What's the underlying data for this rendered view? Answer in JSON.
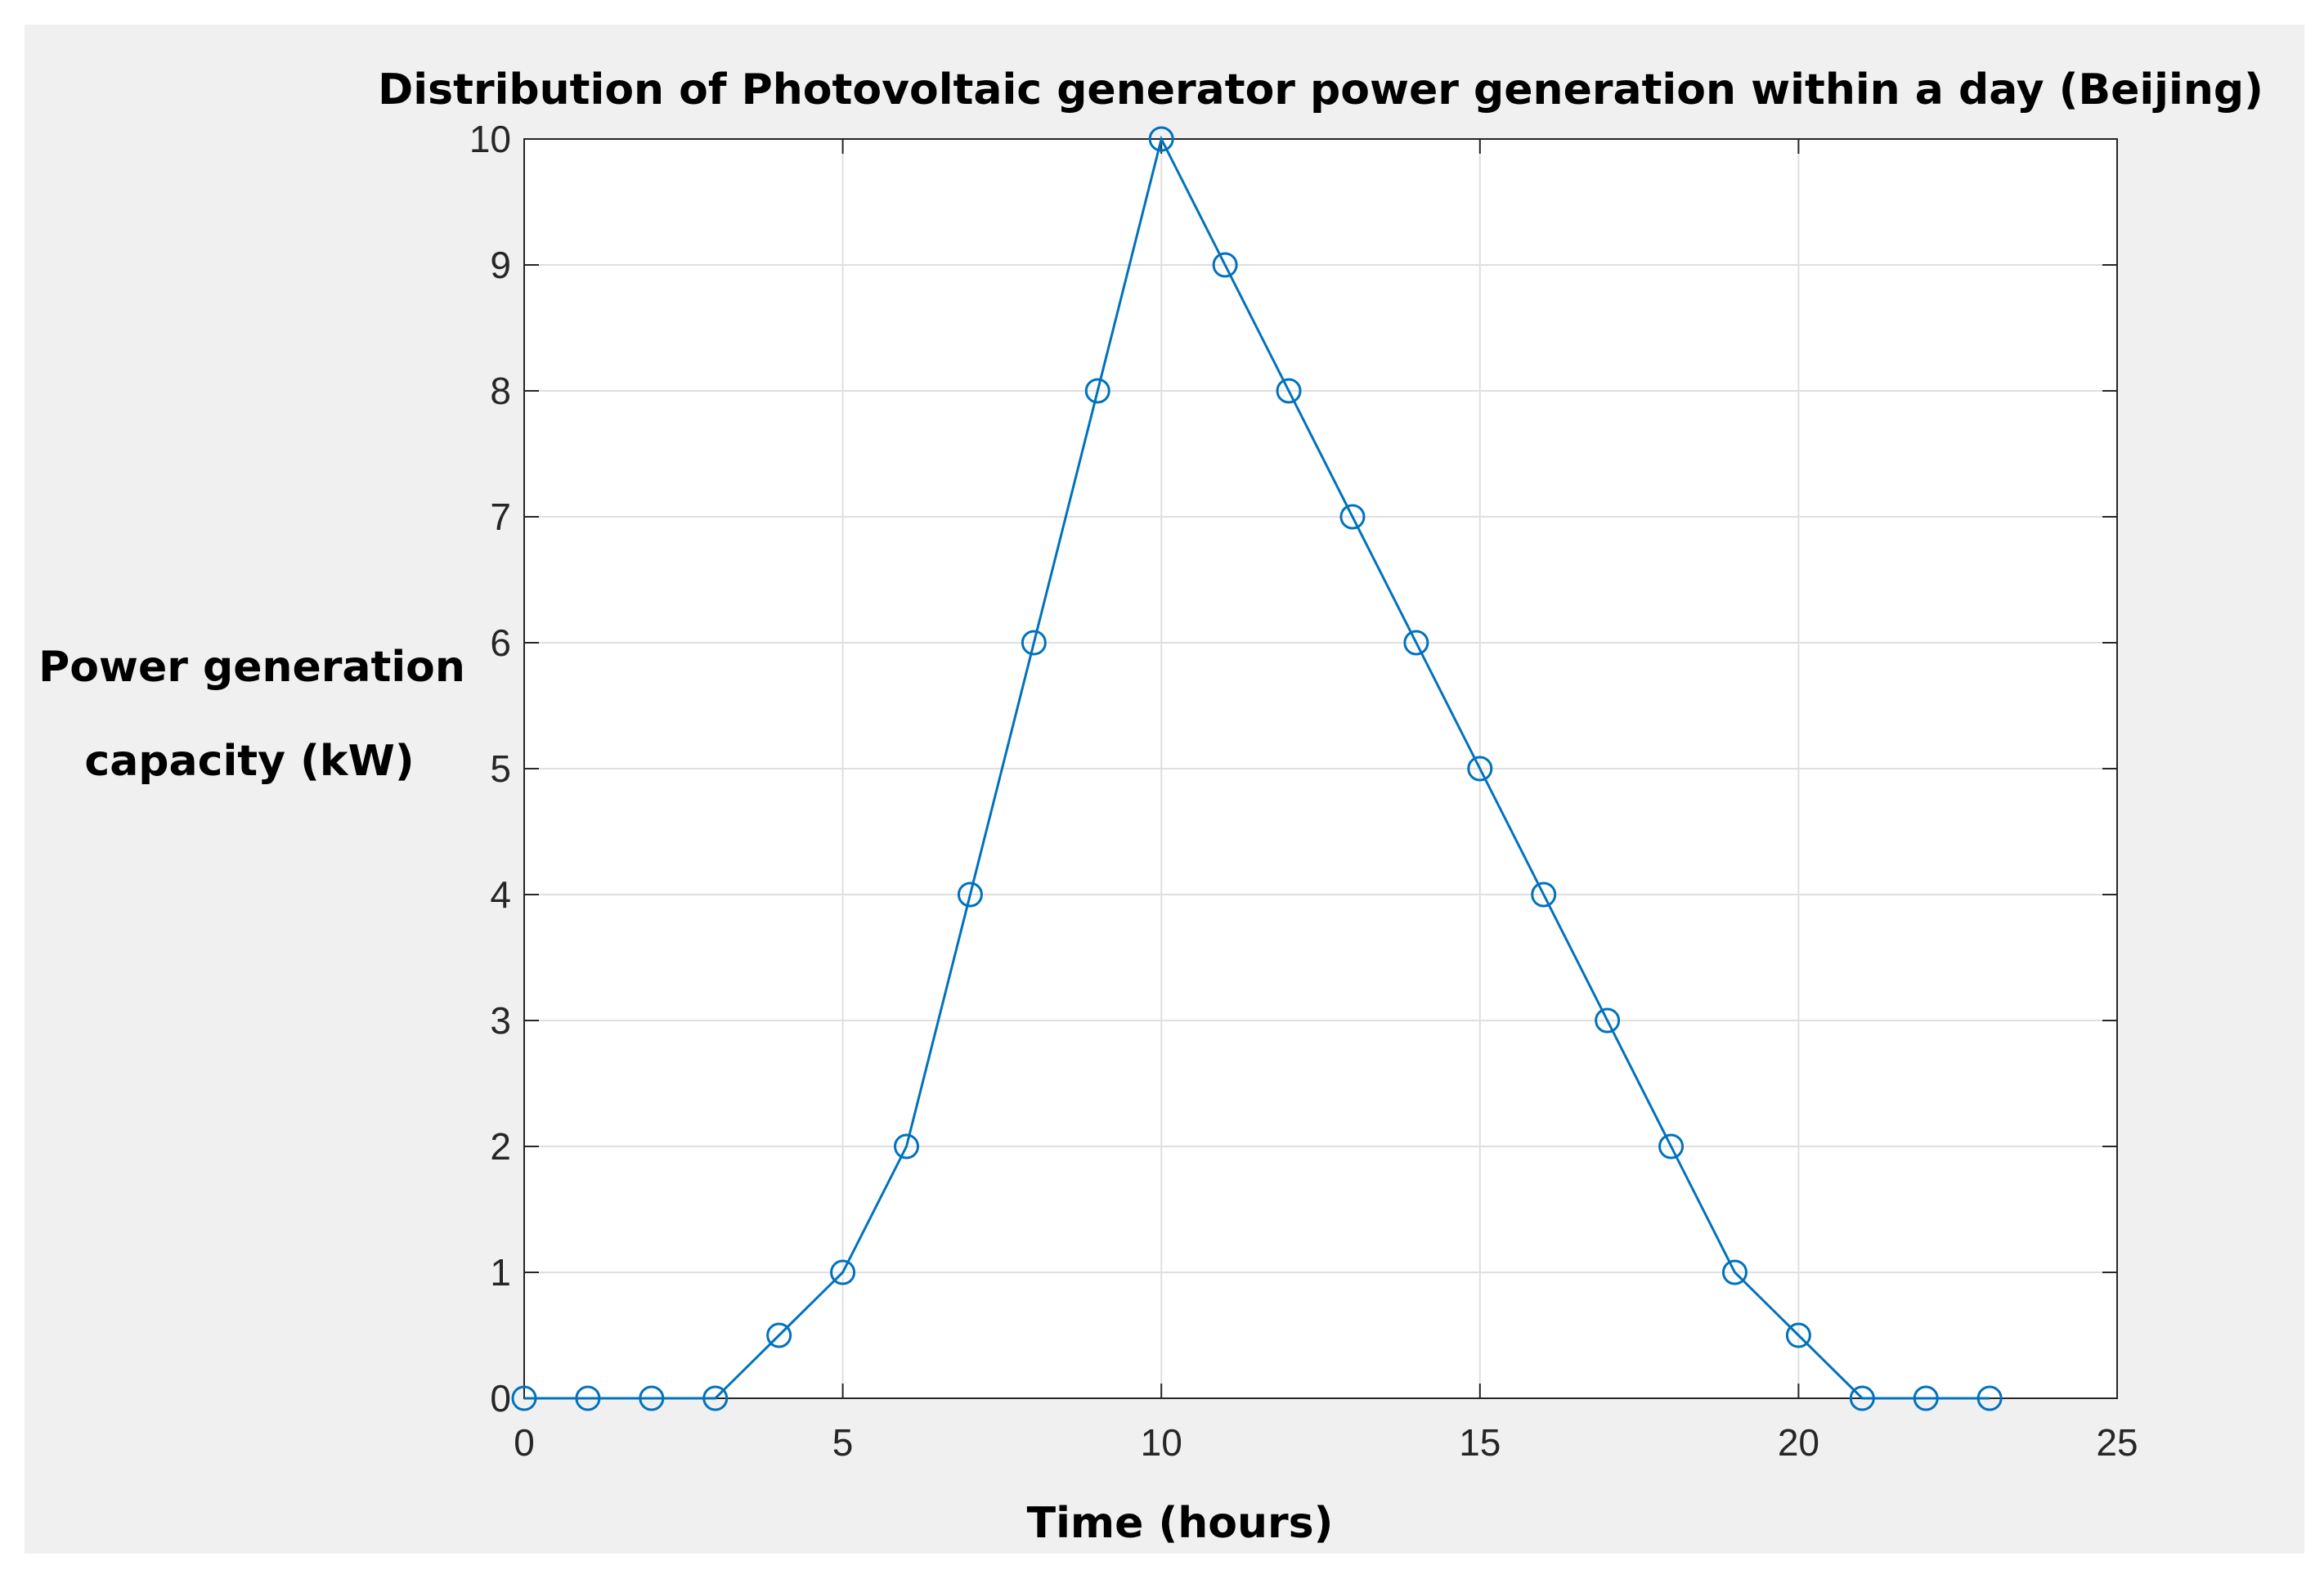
{
  "chart_data": {
    "type": "line",
    "title": "Distribution of Photovoltaic generator power generation within a day (Beijing)",
    "xlabel": "Time (hours)",
    "ylabel_lines": [
      "Power generation",
      "capacity (kW)"
    ],
    "xlim": [
      0,
      25
    ],
    "ylim": [
      0,
      10
    ],
    "xticks": [
      0,
      5,
      10,
      15,
      20,
      25
    ],
    "yticks": [
      0,
      1,
      2,
      3,
      4,
      5,
      6,
      7,
      8,
      9,
      10
    ],
    "grid": true,
    "marker": "circle",
    "series": [
      {
        "color": "#0072BD",
        "x": [
          0,
          1,
          2,
          3,
          4,
          5,
          6,
          7,
          8,
          9,
          10,
          11,
          12,
          13,
          14,
          15,
          16,
          17,
          18,
          19,
          20,
          21,
          22,
          23
        ],
        "y": [
          0,
          0,
          0,
          0,
          0.5,
          1,
          2,
          4,
          6,
          8,
          10,
          9,
          8,
          7,
          6,
          5,
          4,
          3,
          2,
          1,
          0.5,
          0,
          0,
          0
        ]
      }
    ]
  }
}
